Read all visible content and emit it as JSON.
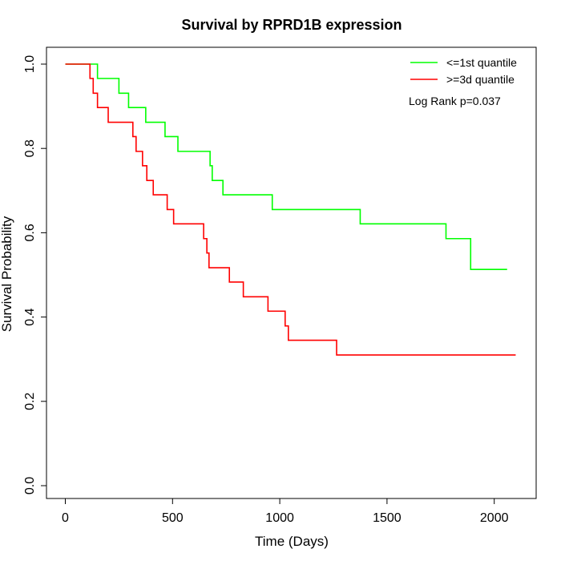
{
  "chart_data": {
    "type": "line",
    "step": true,
    "title": "Survival by RPRD1B expression",
    "xlabel": "Time (Days)",
    "ylabel": "Survival Probability",
    "xlim": [
      0,
      2200
    ],
    "ylim": [
      0,
      1.0
    ],
    "xticks": [
      0,
      500,
      1000,
      1500,
      2000
    ],
    "yticks": [
      0.0,
      0.2,
      0.4,
      0.6,
      0.8,
      1.0
    ],
    "xtick_labels": [
      "0",
      "500",
      "1000",
      "1500",
      "2000"
    ],
    "ytick_labels": [
      "0.0",
      "0.2",
      "0.4",
      "0.6",
      "0.8",
      "1.0"
    ],
    "grid": false,
    "legend_position": "top-right",
    "annotation": "Log Rank p=0.037",
    "series": [
      {
        "name": "<=1st quantile",
        "color": "#00ff00",
        "x": [
          0,
          150,
          250,
          295,
          375,
          465,
          525,
          675,
          685,
          735,
          965,
          1375,
          1775,
          1890,
          2060
        ],
        "y": [
          1.0,
          0.966,
          0.931,
          0.897,
          0.862,
          0.828,
          0.793,
          0.759,
          0.724,
          0.69,
          0.655,
          0.621,
          0.586,
          0.513,
          0.513
        ]
      },
      {
        "name": ">=3d quantile",
        "color": "#ff0000",
        "x": [
          0,
          115,
          130,
          150,
          200,
          315,
          330,
          360,
          380,
          410,
          475,
          505,
          645,
          660,
          670,
          765,
          830,
          945,
          1025,
          1040,
          1265,
          2100
        ],
        "y": [
          1.0,
          0.966,
          0.931,
          0.897,
          0.862,
          0.828,
          0.793,
          0.759,
          0.724,
          0.69,
          0.655,
          0.621,
          0.586,
          0.552,
          0.517,
          0.483,
          0.448,
          0.414,
          0.379,
          0.345,
          0.31,
          0.31
        ]
      }
    ]
  }
}
